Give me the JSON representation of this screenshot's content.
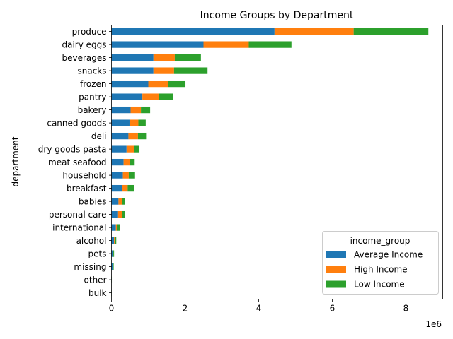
{
  "chart_data": {
    "type": "bar",
    "orientation": "horizontal",
    "stacked": true,
    "title": "Income Groups by Department",
    "xlabel": "",
    "ylabel": "department",
    "x_offset_label": "1e6",
    "xlim": [
      0,
      9
    ],
    "xticks": [
      0,
      2,
      4,
      6,
      8
    ],
    "grid": false,
    "legend_title": "income_group",
    "legend_position": "lower right",
    "categories": [
      "produce",
      "dairy eggs",
      "beverages",
      "snacks",
      "frozen",
      "pantry",
      "bakery",
      "canned goods",
      "deli",
      "dry goods pasta",
      "meat seafood",
      "household",
      "breakfast",
      "babies",
      "personal care",
      "international",
      "alcohol",
      "pets",
      "missing",
      "other",
      "bulk"
    ],
    "series": [
      {
        "name": "Average Income",
        "color": "#1f77b4",
        "values": [
          4.43,
          2.5,
          1.14,
          1.14,
          1.0,
          0.84,
          0.52,
          0.49,
          0.46,
          0.41,
          0.33,
          0.31,
          0.29,
          0.19,
          0.18,
          0.12,
          0.07,
          0.04,
          0.03,
          0.005,
          0.004
        ]
      },
      {
        "name": "High Income",
        "color": "#ff7f0e",
        "values": [
          2.15,
          1.23,
          0.58,
          0.56,
          0.53,
          0.45,
          0.28,
          0.24,
          0.26,
          0.2,
          0.17,
          0.16,
          0.15,
          0.1,
          0.1,
          0.04,
          0.03,
          0.01,
          0.01,
          0.002,
          0.002
        ]
      },
      {
        "name": "Low Income",
        "color": "#2ca02c",
        "values": [
          2.03,
          1.16,
          0.71,
          0.91,
          0.48,
          0.38,
          0.25,
          0.2,
          0.22,
          0.15,
          0.13,
          0.17,
          0.17,
          0.08,
          0.09,
          0.07,
          0.03,
          0.02,
          0.02,
          0.003,
          0.003
        ]
      }
    ]
  }
}
